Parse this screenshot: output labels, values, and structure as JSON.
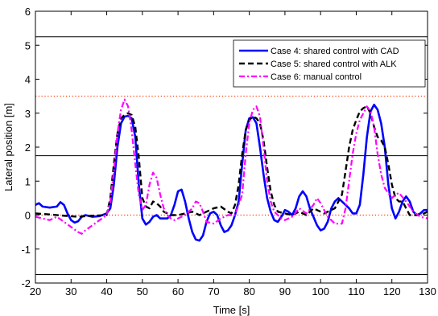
{
  "chart_data": {
    "type": "line",
    "xlabel": "Time [s]",
    "ylabel": "Lateral position [m]",
    "xlim": [
      20,
      130
    ],
    "ylim": [
      -2,
      6
    ],
    "xticks": [
      20,
      30,
      40,
      50,
      60,
      70,
      80,
      90,
      100,
      110,
      120,
      130
    ],
    "yticks": [
      -2,
      -1,
      0,
      1,
      2,
      3,
      4,
      5,
      6
    ],
    "grid": false,
    "legend_position": "top-right",
    "reference_lines": [
      {
        "y": 5.25,
        "style": "solid",
        "color": "#000000"
      },
      {
        "y": 3.5,
        "style": "dotted",
        "color": "#ff3300"
      },
      {
        "y": 1.75,
        "style": "solid",
        "color": "#000000"
      },
      {
        "y": 0,
        "style": "dotted",
        "color": "#ff3300"
      },
      {
        "y": -1.75,
        "style": "solid",
        "color": "#000000"
      }
    ],
    "series": [
      {
        "name": "Case 4: shared control with CAD",
        "color": "#0000ff",
        "dash": "solid",
        "x": [
          20,
          21,
          22,
          24,
          26,
          27,
          28,
          29,
          30,
          31,
          32,
          33,
          34,
          36,
          38,
          40,
          41,
          42,
          43,
          44,
          45,
          46,
          47,
          48,
          49,
          50,
          51,
          52,
          53,
          54,
          55,
          56,
          57,
          58,
          59,
          60,
          61,
          62,
          63,
          64,
          65,
          66,
          67,
          68,
          69,
          70,
          71,
          72,
          73,
          74,
          75,
          76,
          77,
          78,
          79,
          80,
          81,
          82,
          83,
          84,
          85,
          86,
          87,
          88,
          89,
          90,
          91,
          92,
          93,
          94,
          95,
          96,
          97,
          98,
          99,
          100,
          101,
          102,
          103,
          104,
          105,
          106,
          107,
          108,
          109,
          110,
          111,
          112,
          113,
          114,
          115,
          116,
          117,
          118,
          119,
          120,
          121,
          122,
          123,
          124,
          125,
          126,
          127,
          128,
          129,
          130
        ],
        "y": [
          0.3,
          0.35,
          0.25,
          0.22,
          0.25,
          0.38,
          0.3,
          0.05,
          -0.15,
          -0.22,
          -0.18,
          -0.05,
          0.0,
          -0.05,
          -0.03,
          0.05,
          0.2,
          0.9,
          2.0,
          2.7,
          2.9,
          2.92,
          2.85,
          2.3,
          0.9,
          -0.1,
          -0.28,
          -0.2,
          -0.05,
          0.0,
          -0.1,
          -0.1,
          -0.1,
          0.0,
          0.3,
          0.7,
          0.75,
          0.4,
          -0.1,
          -0.5,
          -0.72,
          -0.75,
          -0.6,
          -0.2,
          0.05,
          0.1,
          0.0,
          -0.3,
          -0.5,
          -0.45,
          -0.3,
          0.0,
          0.4,
          1.5,
          2.5,
          2.85,
          2.88,
          2.7,
          2.0,
          1.2,
          0.5,
          0.1,
          -0.15,
          -0.2,
          -0.05,
          0.15,
          0.1,
          0.0,
          0.2,
          0.55,
          0.7,
          0.55,
          0.2,
          -0.05,
          -0.3,
          -0.45,
          -0.4,
          -0.2,
          0.2,
          0.4,
          0.5,
          0.4,
          0.3,
          0.2,
          0.05,
          0.05,
          0.3,
          1.2,
          2.3,
          3.05,
          3.25,
          3.1,
          2.7,
          2.0,
          0.9,
          0.2,
          -0.1,
          0.1,
          0.4,
          0.55,
          0.4,
          0.1,
          0.0,
          0.05,
          0.15,
          0.15
        ],
        "lw": 2.6
      },
      {
        "name": "Case 5: shared control with ALK",
        "color": "#000000",
        "dash": "dashed",
        "x": [
          20,
          24,
          28,
          32,
          36,
          40,
          41,
          42,
          43,
          44,
          45,
          46,
          47,
          48,
          49,
          50,
          51,
          52,
          53,
          54,
          55,
          56,
          58,
          60,
          62,
          64,
          66,
          68,
          70,
          72,
          74,
          75,
          76,
          77,
          78,
          79,
          80,
          81,
          82,
          83,
          84,
          85,
          86,
          87,
          88,
          90,
          92,
          94,
          96,
          98,
          100,
          101,
          102,
          104,
          106,
          107,
          108,
          109,
          110,
          111,
          112,
          113,
          114,
          115,
          116,
          117,
          118,
          119,
          120,
          121,
          122,
          123,
          124,
          125,
          126,
          128,
          130
        ],
        "y": [
          0.05,
          0.02,
          -0.02,
          -0.05,
          -0.02,
          0.0,
          0.5,
          1.5,
          2.4,
          2.85,
          2.95,
          3.0,
          2.95,
          2.6,
          1.7,
          0.5,
          0.25,
          0.2,
          0.4,
          0.35,
          0.25,
          0.1,
          0.0,
          0.0,
          0.05,
          0.1,
          0.0,
          0.1,
          0.2,
          0.25,
          0.1,
          0.05,
          0.3,
          0.9,
          1.8,
          2.5,
          2.8,
          2.9,
          2.85,
          2.7,
          2.2,
          1.4,
          0.7,
          0.3,
          0.1,
          0.05,
          0.0,
          0.1,
          0.0,
          0.2,
          0.1,
          0.05,
          0.1,
          0.2,
          0.6,
          1.3,
          2.0,
          2.5,
          2.8,
          3.05,
          3.15,
          3.2,
          3.0,
          2.6,
          2.3,
          2.2,
          2.0,
          1.5,
          0.9,
          0.5,
          0.4,
          0.4,
          0.2,
          0.0,
          0.0,
          0.0,
          0.1
        ],
        "lw": 2.4
      },
      {
        "name": "Case 6: manual control",
        "color": "#ff00ff",
        "dash": "dashdot",
        "x": [
          20,
          22,
          24,
          26,
          28,
          30,
          32,
          33,
          34,
          36,
          38,
          40,
          41,
          42,
          43,
          44,
          45,
          46,
          47,
          48,
          49,
          50,
          51,
          52,
          53,
          54,
          55,
          56,
          57,
          58,
          59,
          60,
          62,
          64,
          65,
          66,
          67,
          68,
          70,
          72,
          74,
          76,
          78,
          79,
          80,
          81,
          82,
          83,
          84,
          85,
          86,
          87,
          88,
          89,
          90,
          92,
          94,
          96,
          98,
          99,
          100,
          102,
          104,
          106,
          107,
          108,
          109,
          110,
          111,
          112,
          113,
          114,
          115,
          116,
          117,
          118,
          120,
          121,
          122,
          124,
          126,
          128,
          130
        ],
        "y": [
          -0.05,
          -0.1,
          -0.15,
          -0.05,
          -0.2,
          -0.35,
          -0.5,
          -0.55,
          -0.45,
          -0.3,
          -0.15,
          0.0,
          0.4,
          1.3,
          2.4,
          3.1,
          3.4,
          3.2,
          2.5,
          1.5,
          0.6,
          0.15,
          0.3,
          0.9,
          1.25,
          1.1,
          0.6,
          0.2,
          0.0,
          -0.1,
          -0.15,
          -0.1,
          0.0,
          0.2,
          0.4,
          0.35,
          0.1,
          -0.2,
          -0.25,
          -0.1,
          0.0,
          0.0,
          0.6,
          1.8,
          2.7,
          3.1,
          3.2,
          2.9,
          2.0,
          1.0,
          0.4,
          0.1,
          0.0,
          -0.1,
          -0.15,
          -0.05,
          0.2,
          0.05,
          0.3,
          0.5,
          0.35,
          -0.05,
          -0.25,
          -0.25,
          0.2,
          1.0,
          1.8,
          2.4,
          2.8,
          3.0,
          3.2,
          3.05,
          2.6,
          1.8,
          1.2,
          0.8,
          0.5,
          0.6,
          0.65,
          0.4,
          0.1,
          -0.05,
          -0.1
        ],
        "lw": 2.2
      }
    ]
  }
}
